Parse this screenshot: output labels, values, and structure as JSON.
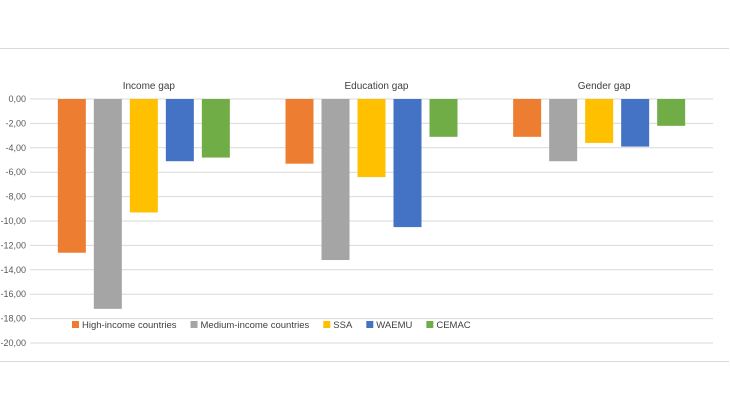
{
  "chart_data": {
    "type": "bar",
    "categories": [
      "Income gap",
      "Education gap",
      "Gender gap"
    ],
    "series": [
      {
        "name": "High-income countries",
        "color": "#ED7D31",
        "values": [
          -12.6,
          -5.3,
          -3.1
        ]
      },
      {
        "name": "Medium-income countries",
        "color": "#A5A5A5",
        "values": [
          -17.2,
          -13.2,
          -5.1
        ]
      },
      {
        "name": "SSA",
        "color": "#FFC000",
        "values": [
          -9.3,
          -6.4,
          -3.6
        ]
      },
      {
        "name": "WAEMU",
        "color": "#4472C4",
        "values": [
          -5.1,
          -10.5,
          -3.9
        ]
      },
      {
        "name": "CEMAC",
        "color": "#70AD47",
        "values": [
          -4.8,
          -3.1,
          -2.2
        ]
      }
    ],
    "y_ticks": [
      "0,00",
      "-2,00",
      "-4,00",
      "-6,00",
      "-8,00",
      "-10,00",
      "-12,00",
      "-14,00",
      "-16,00",
      "-18,00",
      "-20,00"
    ],
    "ylim": [
      -20,
      0
    ],
    "grid": true,
    "legend_position": "bottom",
    "gridline_color": "#d9d9d9"
  }
}
